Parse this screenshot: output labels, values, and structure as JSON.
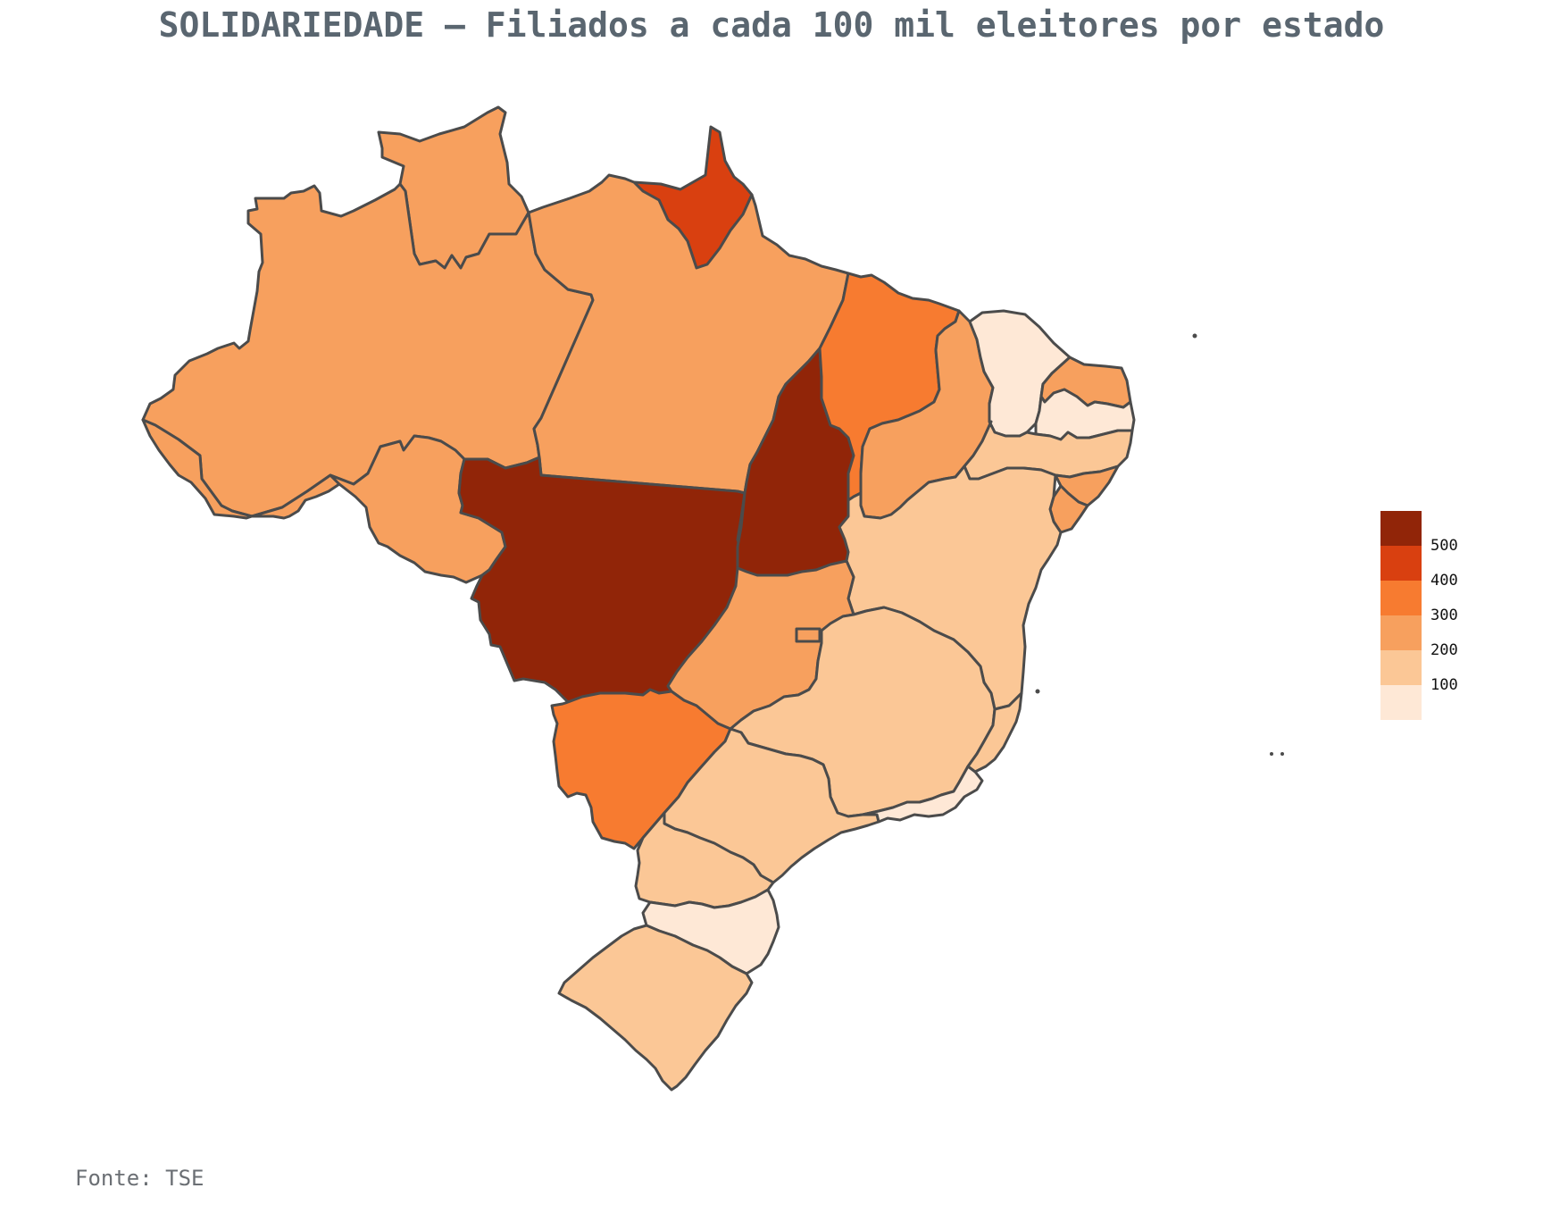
{
  "title": "SOLIDARIEDADE – Filiados a cada 100 mil eleitores por estado",
  "source": "Fonte: TSE",
  "legend": {
    "ticks": [
      "500",
      "400",
      "300",
      "200",
      "100"
    ],
    "colors": [
      "#912508",
      "#d94010",
      "#f77b30",
      "#f7a05e",
      "#fbc796",
      "#fee8d6"
    ]
  },
  "chart_data": {
    "type": "choropleth",
    "colorscale": [
      "#fee8d6",
      "#fbc796",
      "#f7a05e",
      "#f77b30",
      "#d94010",
      "#912508"
    ],
    "bins": [
      0,
      100,
      200,
      300,
      400,
      500
    ],
    "regions": [
      {
        "id": "RR",
        "bin": "200-300"
      },
      {
        "id": "AP",
        "bin": "400-500"
      },
      {
        "id": "AM",
        "bin": "200-300"
      },
      {
        "id": "PA",
        "bin": "200-300"
      },
      {
        "id": "AC",
        "bin": "200-300"
      },
      {
        "id": "RO",
        "bin": "200-300"
      },
      {
        "id": "MT",
        "bin": ">500"
      },
      {
        "id": "TO",
        "bin": ">500"
      },
      {
        "id": "MA",
        "bin": "300-400"
      },
      {
        "id": "PI",
        "bin": "200-300"
      },
      {
        "id": "CE",
        "bin": "0-100"
      },
      {
        "id": "RN",
        "bin": "200-300"
      },
      {
        "id": "PB",
        "bin": "0-100"
      },
      {
        "id": "PE",
        "bin": "100-200"
      },
      {
        "id": "AL",
        "bin": "200-300"
      },
      {
        "id": "SE",
        "bin": "200-300"
      },
      {
        "id": "BA",
        "bin": "100-200"
      },
      {
        "id": "GO",
        "bin": "200-300"
      },
      {
        "id": "DF",
        "bin": "200-300"
      },
      {
        "id": "MS",
        "bin": "300-400"
      },
      {
        "id": "MG",
        "bin": "100-200"
      },
      {
        "id": "ES",
        "bin": "100-200"
      },
      {
        "id": "RJ",
        "bin": "0-100"
      },
      {
        "id": "SP",
        "bin": "100-200"
      },
      {
        "id": "PR",
        "bin": "100-200"
      },
      {
        "id": "SC",
        "bin": "0-100"
      },
      {
        "id": "RS",
        "bin": "100-200"
      }
    ]
  }
}
